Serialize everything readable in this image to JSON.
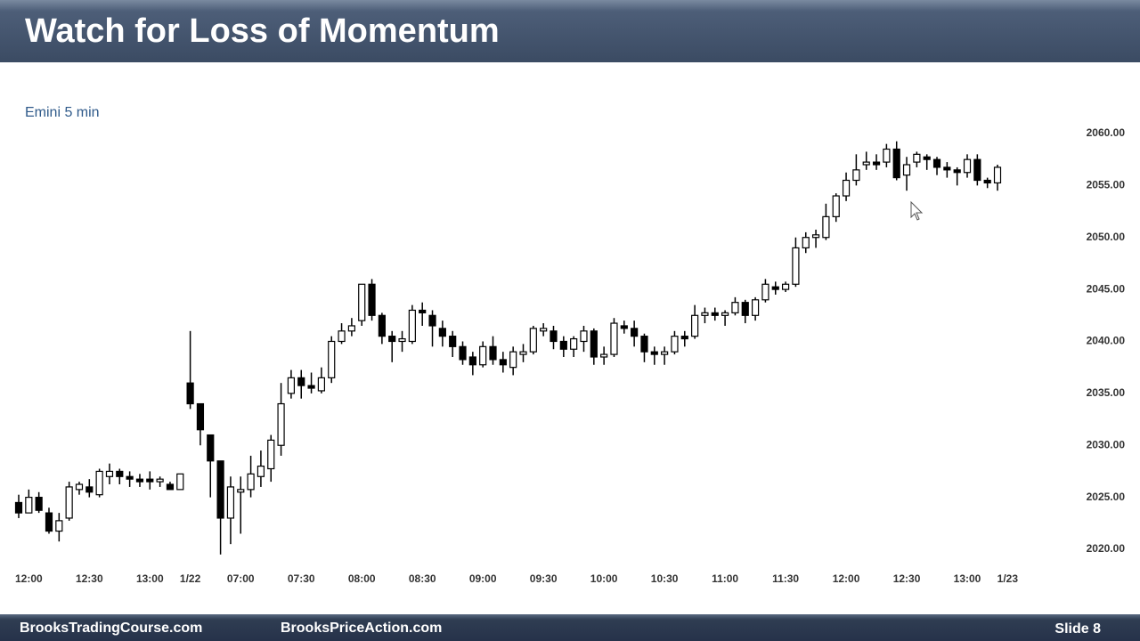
{
  "header": {
    "title": "Watch for Loss of Momentum"
  },
  "chart_data": {
    "type": "candlestick",
    "subtitle": "Emini 5 min",
    "categories": [
      null,
      "12:00",
      null,
      null,
      null,
      null,
      null,
      "12:30",
      null,
      null,
      null,
      null,
      null,
      "13:00",
      null,
      null,
      null,
      "1/22",
      null,
      null,
      null,
      null,
      "07:00",
      null,
      null,
      null,
      null,
      null,
      "07:30",
      null,
      null,
      null,
      null,
      null,
      "08:00",
      null,
      null,
      null,
      null,
      null,
      "08:30",
      null,
      null,
      null,
      null,
      null,
      "09:00",
      null,
      null,
      null,
      null,
      null,
      "09:30",
      null,
      null,
      null,
      null,
      null,
      "10:00",
      null,
      null,
      null,
      null,
      null,
      "10:30",
      null,
      null,
      null,
      null,
      null,
      "11:00",
      null,
      null,
      null,
      null,
      null,
      "11:30",
      null,
      null,
      null,
      null,
      null,
      "12:00",
      null,
      null,
      null,
      null,
      null,
      "12:30",
      null,
      null,
      null,
      null,
      null,
      "13:00",
      null,
      null,
      null,
      "1/23"
    ],
    "open": [
      2024.5,
      2023.5,
      2025,
      2023.5,
      2021.75,
      2023,
      2025.75,
      2026,
      2025.25,
      2027,
      2027.5,
      2027,
      2026.75,
      2026.75,
      2026.5,
      2026.25,
      2025.75,
      2036,
      2034,
      2031,
      2028.5,
      2023,
      2025.5,
      2025.75,
      2027,
      2027.75,
      2030,
      2035,
      2036.5,
      2035.75,
      2035.25,
      2036.5,
      2040,
      2041,
      2042,
      2045.5,
      2042.5,
      2040.5,
      2040,
      2040,
      2043,
      2042.5,
      2041.25,
      2040.5,
      2039.5,
      2038.5,
      2037.75,
      2039.5,
      2038.25,
      2037.5,
      2038.75,
      2039,
      2041,
      2041,
      2040,
      2039.25,
      2040,
      2041,
      2038.5,
      2038.75,
      2041.5,
      2041.25,
      2040.5,
      2039,
      2038.75,
      2039,
      2040.5,
      2040.5,
      2042.5,
      2042.75,
      2042.5,
      2042.75,
      2043.75,
      2042.5,
      2044,
      2045.25,
      2045,
      2045.5,
      2049,
      2050,
      2050,
      2052,
      2054,
      2055.5,
      2057,
      2057.25,
      2057.25,
      2058.5,
      2056,
      2057.25,
      2057.75,
      2057.5,
      2056.75,
      2056.5,
      2056.25,
      2057.5,
      2055.5,
      2055.25,
      null
    ],
    "high": [
      2025.25,
      2025.75,
      2025.5,
      2024,
      2023.5,
      2026.5,
      2026.5,
      2026.75,
      2027.75,
      2028.25,
      2027.75,
      2027.5,
      2027.25,
      2027.5,
      2027,
      2026.5,
      2027.25,
      2041,
      2034,
      2031,
      2028.5,
      2027,
      2027,
      2029,
      2029.5,
      2031,
      2036,
      2037.25,
      2037.25,
      2037,
      2037.5,
      2040.5,
      2041.75,
      2042.25,
      2045.5,
      2046,
      2042.75,
      2041,
      2041,
      2043.5,
      2043.75,
      2043,
      2042,
      2041,
      2040,
      2039,
      2040,
      2040.5,
      2039,
      2039.5,
      2039.75,
      2041.5,
      2041.75,
      2041.5,
      2040.5,
      2040.5,
      2041.5,
      2041.25,
      2039.5,
      2042.25,
      2042,
      2042,
      2040.75,
      2039.5,
      2039.5,
      2041,
      2041,
      2043.5,
      2043.25,
      2043.25,
      2043,
      2044.25,
      2044,
      2044.25,
      2046,
      2045.75,
      2045.75,
      2050,
      2050.5,
      2050.75,
      2053.25,
      2054.25,
      2056.25,
      2058,
      2058.25,
      2058,
      2059,
      2059.25,
      2057.75,
      2058.25,
      2058,
      2057.75,
      2057.25,
      2056.75,
      2058,
      2058,
      2055.75,
      2057,
      null
    ],
    "low": [
      2023,
      2023.5,
      2023.5,
      2021.5,
      2020.75,
      2022.75,
      2025.25,
      2025,
      2025,
      2026.25,
      2026.25,
      2026,
      2026,
      2025.75,
      2026,
      2025.75,
      2025.75,
      2033.5,
      2030,
      2025,
      2019.5,
      2020.5,
      2021.5,
      2025,
      2026,
      2026.5,
      2029,
      2034.5,
      2034.5,
      2035,
      2035,
      2036,
      2039.75,
      2040.5,
      2041.5,
      2042,
      2039.75,
      2038,
      2039,
      2039.75,
      2041.5,
      2039.5,
      2039.5,
      2038.5,
      2037.75,
      2036.75,
      2037.5,
      2037.75,
      2037,
      2036.75,
      2038,
      2038.75,
      2040.5,
      2039.25,
      2038.5,
      2038.5,
      2039,
      2037.75,
      2037.75,
      2038.5,
      2040.75,
      2039.5,
      2038,
      2037.75,
      2037.75,
      2038.75,
      2039.5,
      2040.25,
      2041.75,
      2042,
      2041.5,
      2042.5,
      2041.75,
      2042,
      2043.75,
      2044.5,
      2044.75,
      2045.25,
      2048.5,
      2049,
      2049.75,
      2051.5,
      2053.5,
      2055,
      2056.5,
      2056.5,
      2056.75,
      2055.5,
      2054.5,
      2056.75,
      2056.5,
      2056,
      2055.75,
      2055,
      2055.75,
      2055,
      2054.75,
      2054.5,
      null
    ],
    "close": [
      2023.5,
      2025,
      2023.75,
      2021.75,
      2022.75,
      2026,
      2026.25,
      2025.5,
      2027.5,
      2027.5,
      2027,
      2026.75,
      2026.5,
      2026.5,
      2026.75,
      2025.75,
      2027.25,
      2034,
      2031.5,
      2028.5,
      2023,
      2026,
      2025.75,
      2027.25,
      2028,
      2030.5,
      2034,
      2036.5,
      2035.75,
      2035.5,
      2036.5,
      2040,
      2041,
      2041.5,
      2045.5,
      2042.5,
      2040.5,
      2040,
      2040.25,
      2043,
      2042.75,
      2041.5,
      2040.5,
      2039.5,
      2038.25,
      2037.75,
      2039.5,
      2038.25,
      2037.75,
      2039,
      2039,
      2041.25,
      2041.25,
      2040,
      2039.25,
      2040.25,
      2041,
      2038.5,
      2038.75,
      2041.75,
      2041.25,
      2040.5,
      2039,
      2038.75,
      2039,
      2040.5,
      2040.25,
      2042.5,
      2042.75,
      2042.5,
      2042.75,
      2043.75,
      2042.5,
      2044,
      2045.5,
      2045,
      2045.5,
      2049,
      2050,
      2050.25,
      2052,
      2054,
      2055.5,
      2056.5,
      2057.25,
      2057,
      2058.5,
      2055.75,
      2057,
      2058,
      2057.5,
      2056.75,
      2056.5,
      2056.25,
      2057.5,
      2055.5,
      2055.25,
      2056.75,
      null
    ],
    "up_color": "#ffffff",
    "down_color": "#000000",
    "wick_color": "#000000",
    "ylim": [
      2018.5,
      2061
    ],
    "yticks": [
      {
        "value": 2020,
        "label": "2020.00"
      },
      {
        "value": 2025,
        "label": "2025.00"
      },
      {
        "value": 2030,
        "label": "2030.00"
      },
      {
        "value": 2035,
        "label": "2035.00"
      },
      {
        "value": 2040,
        "label": "2040.00"
      },
      {
        "value": 2045,
        "label": "2045.00"
      },
      {
        "value": 2050,
        "label": "2050.00"
      },
      {
        "value": 2055,
        "label": "2055.00"
      },
      {
        "value": 2060,
        "label": "2060.00"
      }
    ],
    "grid": false
  },
  "footer": {
    "left": "BrooksTradingCourse.com",
    "center": "BrooksPriceAction.com",
    "slide": "Slide 8"
  }
}
